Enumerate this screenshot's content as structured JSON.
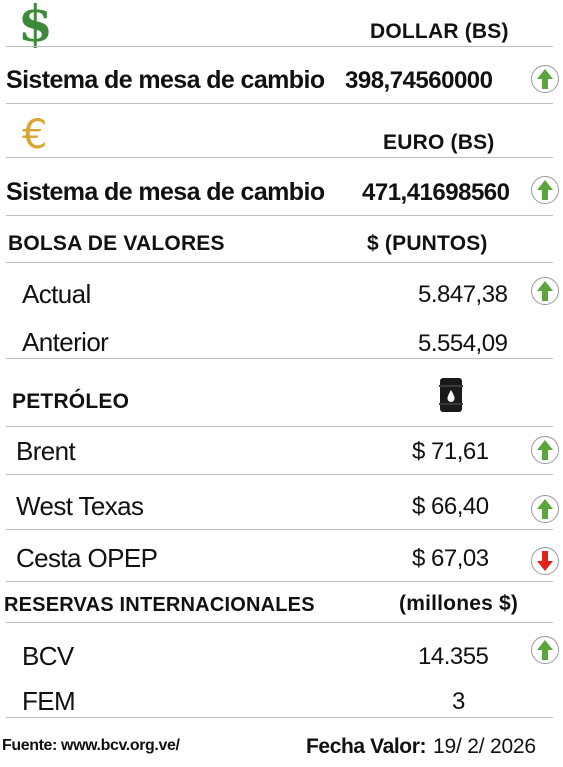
{
  "dollar": {
    "currency_header": "DOLLAR (BS)",
    "label": "Sistema de mesa de cambio",
    "value": "398,74560000",
    "trend": "up",
    "icon": "dollar-sign-icon",
    "icon_color": "#3f8a3a"
  },
  "euro": {
    "currency_header": "EURO (BS)",
    "label": "Sistema de mesa de cambio",
    "value": "471,41698560",
    "trend": "up",
    "icon": "euro-sign-icon",
    "icon_color": "#d9a531"
  },
  "bolsa": {
    "title": "BOLSA DE VALORES",
    "unit_header": "$ (PUNTOS)",
    "rows": [
      {
        "label": "Actual",
        "value": "5.847,38",
        "trend": "up"
      },
      {
        "label": "Anterior",
        "value": "5.554,09"
      }
    ]
  },
  "petroleo": {
    "title": "PETRÓLEO",
    "icon": "oil-barrel-icon",
    "rows": [
      {
        "label": "Brent",
        "value": "$ 71,61",
        "trend": "up"
      },
      {
        "label": "West Texas",
        "value": "$ 66,40",
        "trend": "up"
      },
      {
        "label": "Cesta OPEP",
        "value": "$ 67,03",
        "trend": "down"
      }
    ]
  },
  "reservas": {
    "title": "RESERVAS INTERNACIONALES",
    "unit_header": "(millones $)",
    "rows": [
      {
        "label": "BCV",
        "value": "14.355",
        "trend": "up"
      },
      {
        "label": "FEM",
        "value": "3"
      }
    ]
  },
  "footer": {
    "source": "Fuente: www.bcv.org.ve/",
    "date_label": "Fecha Valor:",
    "date_value": "19/ 2/ 2026"
  },
  "colors": {
    "up_arrow": "#5aa63c",
    "down_arrow": "#e3231b",
    "rule": "#bdbdbd"
  }
}
